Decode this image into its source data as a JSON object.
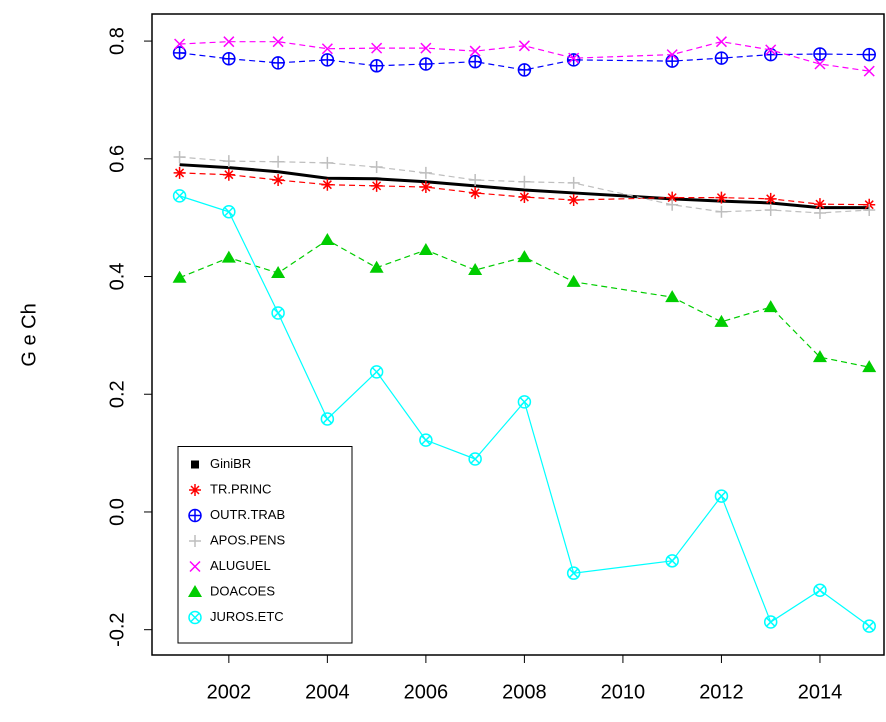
{
  "chart_data": {
    "type": "line",
    "y_label": "G e Ch",
    "x": [
      2001,
      2002,
      2003,
      2004,
      2005,
      2006,
      2007,
      2008,
      2009,
      2011,
      2012,
      2013,
      2014,
      2015
    ],
    "xlim": [
      2000.44,
      2015.3
    ],
    "xticks": [
      2002,
      2004,
      2006,
      2008,
      2010,
      2012,
      2014
    ],
    "ylim": [
      -0.243,
      0.846
    ],
    "yticks": [
      {
        "value": -0.2,
        "label": "-0.2"
      },
      {
        "value": 0,
        "label": "0.0"
      },
      0.2,
      0.4,
      0.6,
      0.8
    ],
    "legend": "bottom-left",
    "series": [
      {
        "name": "GiniBR",
        "color": "#000000",
        "marker": "square",
        "line_style": "solid",
        "values": [
          0.59,
          0.585,
          0.578,
          0.567,
          0.566,
          0.561,
          0.554,
          0.547,
          0.542,
          0.532,
          0.528,
          0.525,
          0.517,
          0.517
        ]
      },
      {
        "name": "TR.PRINC",
        "color": "#ff0000",
        "marker": "asterisk",
        "line_style": "dashed",
        "values": [
          0.576,
          0.573,
          0.564,
          0.556,
          0.554,
          0.552,
          0.542,
          0.535,
          0.53,
          0.534,
          0.534,
          0.532,
          0.523,
          0.522
        ]
      },
      {
        "name": "OUTR.TRAB",
        "color": "#0000ff",
        "marker": "circle-plus",
        "line_style": "dashed",
        "values": [
          0.78,
          0.77,
          0.763,
          0.768,
          0.758,
          0.761,
          0.765,
          0.751,
          0.768,
          0.766,
          0.771,
          0.777,
          0.778,
          0.777
        ]
      },
      {
        "name": "APOS.PENS",
        "color": "#bebebe",
        "marker": "plus",
        "line_style": "dashed",
        "values": [
          0.603,
          0.596,
          0.595,
          0.593,
          0.586,
          0.576,
          0.564,
          0.561,
          0.559,
          0.522,
          0.51,
          0.513,
          0.508,
          0.513
        ]
      },
      {
        "name": "ALUGUEL",
        "color": "#ff00ff",
        "marker": "x",
        "line_style": "dashed",
        "values": [
          0.795,
          0.799,
          0.799,
          0.787,
          0.788,
          0.788,
          0.783,
          0.792,
          0.771,
          0.777,
          0.799,
          0.785,
          0.761,
          0.749
        ]
      },
      {
        "name": "DOACOES",
        "color": "#00cd00",
        "marker": "triangle",
        "line_style": "dashed",
        "values": [
          0.398,
          0.432,
          0.406,
          0.462,
          0.415,
          0.445,
          0.411,
          0.433,
          0.391,
          0.365,
          0.323,
          0.348,
          0.263,
          0.246
        ]
      },
      {
        "name": "JUROS.ETC",
        "color": "#00ffff",
        "marker": "circle-x",
        "line_style": "solid",
        "values": [
          0.537,
          0.51,
          0.338,
          0.158,
          0.238,
          0.122,
          0.09,
          0.187,
          -0.104,
          -0.083,
          0.027,
          -0.187,
          -0.133,
          -0.194
        ]
      }
    ]
  }
}
